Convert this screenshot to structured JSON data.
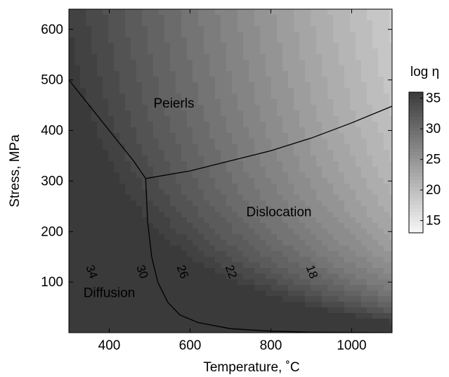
{
  "chart_data": {
    "type": "heatmap",
    "title": "",
    "xlabel": "Temperature, ˚C",
    "ylabel": "Stress, MPa",
    "xlim": [
      300,
      1100
    ],
    "ylim": [
      0,
      640
    ],
    "x_ticks": [
      400,
      600,
      800,
      1000
    ],
    "y_ticks": [
      100,
      200,
      300,
      400,
      500,
      600
    ],
    "colorbar": {
      "title": "log η",
      "ticks": [
        35,
        30,
        25,
        20,
        15
      ],
      "range": [
        13,
        36
      ],
      "colormap": [
        "#f7f7f7",
        "#3a3a3a"
      ]
    },
    "regions": [
      {
        "name": "Peierls",
        "x": 560,
        "y": 445
      },
      {
        "name": "Dislocation",
        "x": 820,
        "y": 230
      },
      {
        "name": "Diffusion",
        "x": 400,
        "y": 70
      }
    ],
    "contour_labels": [
      {
        "text": "34",
        "x": 355,
        "y": 120
      },
      {
        "text": "30",
        "x": 480,
        "y": 120
      },
      {
        "text": "26",
        "x": 580,
        "y": 120
      },
      {
        "text": "22",
        "x": 700,
        "y": 120
      },
      {
        "text": "18",
        "x": 900,
        "y": 120
      }
    ],
    "boundaries": [
      {
        "name": "Peierls-Diffusion",
        "points": [
          [
            300,
            500
          ],
          [
            360,
            440
          ],
          [
            420,
            380
          ],
          [
            460,
            340
          ],
          [
            490,
            305
          ]
        ]
      },
      {
        "name": "Peierls-Dislocation",
        "points": [
          [
            490,
            305
          ],
          [
            600,
            320
          ],
          [
            700,
            340
          ],
          [
            800,
            360
          ],
          [
            900,
            385
          ],
          [
            1000,
            415
          ],
          [
            1100,
            448
          ]
        ]
      },
      {
        "name": "Dislocation-Diffusion",
        "points": [
          [
            490,
            305
          ],
          [
            495,
            220
          ],
          [
            505,
            150
          ],
          [
            520,
            100
          ],
          [
            545,
            60
          ],
          [
            575,
            35
          ],
          [
            620,
            20
          ],
          [
            700,
            8
          ],
          [
            800,
            3
          ],
          [
            900,
            1
          ],
          [
            1100,
            0
          ]
        ]
      }
    ]
  }
}
